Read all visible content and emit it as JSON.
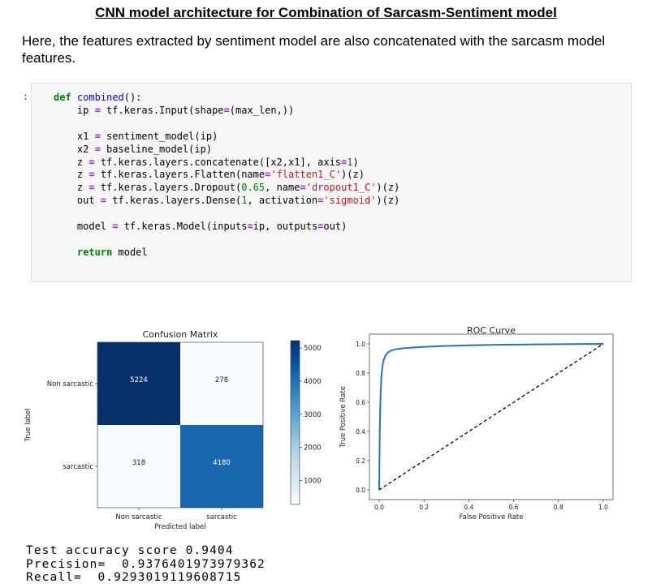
{
  "heading": "CNN model architecture for Combination of Sarcasm-Sentiment model",
  "intro": "Here, the features extracted by sentiment model are also concatenated with the sarcasm model features.",
  "cell_prompt": ":",
  "code_lines": [
    "def combined():",
    "    ip = tf.keras.Input(shape=(max_len,))",
    "",
    "    x1 = sentiment_model(ip)",
    "    x2 = baseline_model(ip)",
    "    z = tf.keras.layers.concatenate([x2,x1], axis=1)",
    "    z = tf.keras.layers.Flatten(name='flatten1_C')(z)",
    "    z = tf.keras.layers.Dropout(0.65, name='dropout1_C')(z)",
    "    out = tf.keras.layers.Dense(1, activation='sigmoid')(z)",
    "",
    "    model = tf.keras.Model(inputs=ip, outputs=out)",
    "",
    "    return model"
  ],
  "chart_data": [
    {
      "type": "heatmap",
      "title": "Confusion Matrix",
      "xlabel": "Predicted label",
      "ylabel": "True label",
      "x_categories": [
        "Non sarcastic",
        "sarcastic"
      ],
      "y_categories": [
        "Non sarcastic",
        "sarcastic"
      ],
      "values": [
        [
          5224,
          278
        ],
        [
          318,
          4180
        ]
      ],
      "colorbar_ticks": [
        1000,
        2000,
        3000,
        4000,
        5000
      ],
      "colormap": "Blues",
      "colors": {
        "high": "#08306b",
        "mid": "#2b7bba",
        "low_text": "#ffffff"
      }
    },
    {
      "type": "line",
      "title": "ROC Curve",
      "xlabel": "False Positive Rate",
      "ylabel": "True Positive Rate",
      "xlim": [
        0,
        1
      ],
      "ylim": [
        0,
        1
      ],
      "xticks": [
        "0.0",
        "0.2",
        "0.4",
        "0.6",
        "0.8",
        "1.0"
      ],
      "yticks": [
        "0.0",
        "0.2",
        "0.4",
        "0.6",
        "0.8",
        "1.0"
      ],
      "series": [
        {
          "color": "#1f77b4",
          "style": "solid",
          "x": [
            0,
            0.003,
            0.006,
            0.01,
            0.015,
            0.02,
            0.03,
            0.04,
            0.05,
            0.07,
            0.1,
            0.15,
            0.2,
            0.3,
            0.4,
            0.5,
            0.6,
            0.8,
            1.0
          ],
          "y": [
            0,
            0.45,
            0.65,
            0.78,
            0.85,
            0.89,
            0.925,
            0.942,
            0.952,
            0.962,
            0.969,
            0.975,
            0.98,
            0.986,
            0.99,
            0.993,
            0.995,
            0.998,
            1.0
          ]
        },
        {
          "color": "#000000",
          "style": "dashed",
          "x": [
            0,
            1
          ],
          "y": [
            0,
            1
          ]
        }
      ]
    }
  ],
  "results": {
    "accuracy_line": "Test accuracy score 0.9404",
    "precision_line": "Precision=  0.9376401973979362",
    "recall_line": "Recall=  0.9293019119608715"
  }
}
